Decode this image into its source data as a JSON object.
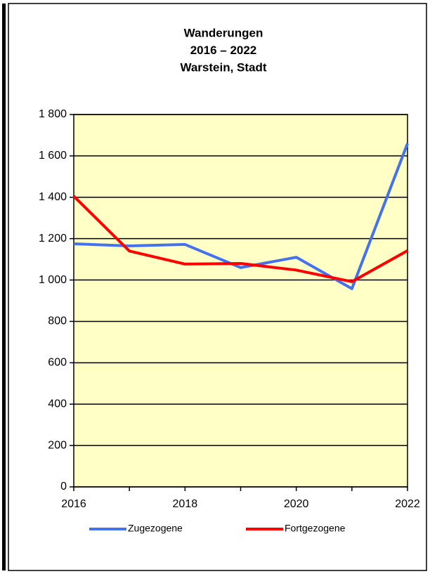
{
  "chart_data": {
    "type": "line",
    "title": [
      "Wanderungen",
      "2016 – 2022",
      "Warstein, Stadt"
    ],
    "x": [
      2016,
      2017,
      2018,
      2019,
      2020,
      2021,
      2022
    ],
    "series": [
      {
        "name": "Zugezogene",
        "color": "#4472ee",
        "values": [
          1175,
          1165,
          1172,
          1060,
          1110,
          958,
          1660
        ]
      },
      {
        "name": "Fortgezogene",
        "color": "#ff0000",
        "values": [
          1405,
          1140,
          1077,
          1080,
          1048,
          992,
          1142
        ]
      }
    ],
    "xlim": [
      2016,
      2022
    ],
    "xticks": [
      2016,
      2018,
      2020,
      2022
    ],
    "ylim": [
      0,
      1800
    ],
    "yticks": [
      0,
      200,
      400,
      600,
      800,
      {
        "value": 1000,
        "label": "1 000"
      },
      {
        "value": 1200,
        "label": "1 200"
      },
      {
        "value": 1400,
        "label": "1 400"
      },
      {
        "value": 1600,
        "label": "1 600"
      },
      {
        "value": 1800,
        "label": "1 800"
      }
    ],
    "grid": true,
    "legend": "bottom",
    "background": "#ffffc6"
  }
}
